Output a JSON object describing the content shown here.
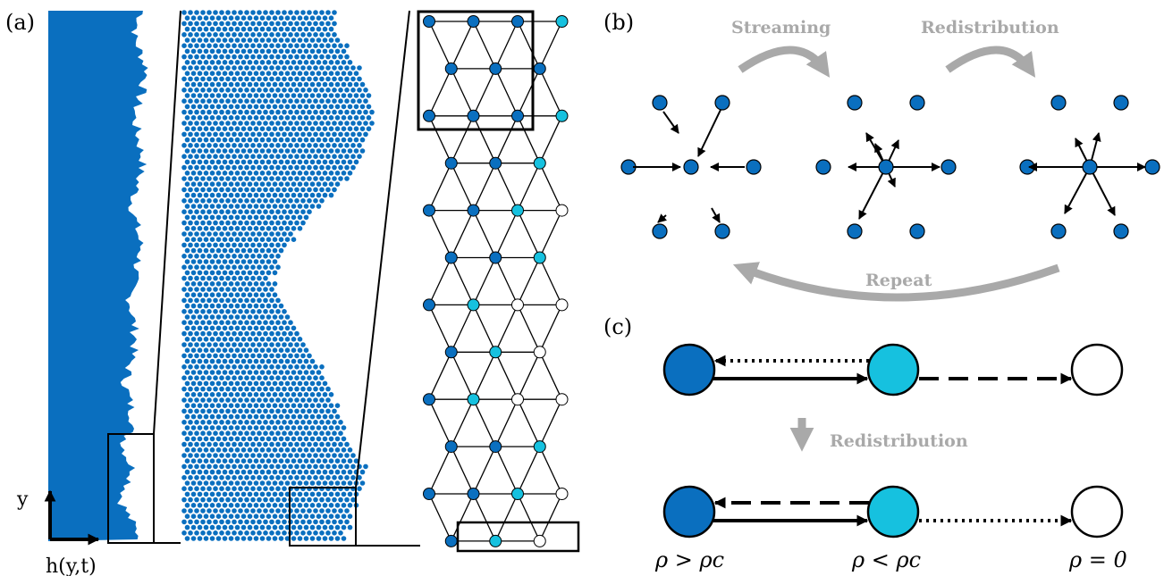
{
  "panels": {
    "a": "(a)",
    "b": "(b)",
    "c": "(c)"
  },
  "axes": {
    "y_label": "y",
    "x_label": "h(y,t)"
  },
  "steps": {
    "streaming": "Streaming",
    "redistribution": "Redistribution",
    "repeat": "Repeat",
    "redistribution_c": "Redistribution"
  },
  "states": {
    "dense": "ρ > ρc",
    "sparse": "ρ < ρc",
    "empty": "ρ = 0"
  },
  "colors": {
    "dense": "#0a6fbf",
    "interface": "#16c1df",
    "empty": "#ffffff",
    "arrow_grey": "#a9a9a9",
    "outline": "#000000"
  }
}
